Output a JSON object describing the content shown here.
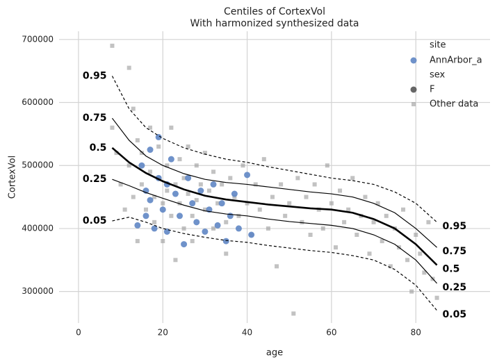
{
  "chart_data": {
    "type": "scatter",
    "title": "Centiles of CortexVol",
    "subtitle": "With harmonized synthesized data",
    "x_label": "age",
    "y_label": "CortexVol",
    "xlim": [
      -4.6,
      97.6
    ],
    "ylim": [
      250000,
      713000
    ],
    "xticks": [
      0,
      20,
      40,
      60,
      80
    ],
    "yticks": [
      300000,
      400000,
      500000,
      600000,
      700000
    ],
    "grid": true,
    "series": [
      {
        "name": "Other data",
        "marker": "square",
        "color": "#9a9a9a",
        "x": [
          8,
          8,
          9,
          10,
          11,
          12,
          12,
          13,
          13,
          14,
          14,
          15,
          15,
          16,
          17,
          17,
          18,
          18,
          19,
          19,
          20,
          20,
          21,
          21,
          22,
          22,
          23,
          23,
          24,
          24,
          25,
          25,
          26,
          26,
          27,
          27,
          28,
          28,
          29,
          30,
          30,
          31,
          32,
          32,
          33,
          34,
          35,
          35,
          36,
          37,
          38,
          39,
          40,
          41,
          42,
          43,
          44,
          45,
          46,
          47,
          48,
          49,
          50,
          51,
          52,
          53,
          54,
          55,
          56,
          57,
          58,
          59,
          60,
          61,
          62,
          63,
          64,
          65,
          66,
          67,
          68,
          69,
          70,
          71,
          72,
          73,
          74,
          75,
          76,
          77,
          78,
          79,
          80,
          81,
          82,
          83,
          84,
          85
        ],
        "values": [
          690000,
          560000,
          520000,
          470000,
          430000,
          655000,
          500000,
          590000,
          450000,
          540000,
          380000,
          470000,
          520000,
          430000,
          560000,
          490000,
          450000,
          410000,
          530000,
          480000,
          440000,
          380000,
          500000,
          460000,
          560000,
          420000,
          470000,
          350000,
          510000,
          440000,
          480000,
          400000,
          530000,
          455000,
          420000,
          380000,
          500000,
          445000,
          470000,
          430000,
          520000,
          460000,
          400000,
          490000,
          440000,
          470000,
          410000,
          360000,
          480000,
          450000,
          420000,
          500000,
          440000,
          390000,
          470000,
          430000,
          510000,
          400000,
          450000,
          340000,
          470000,
          420000,
          440000,
          265000,
          480000,
          410000,
          450000,
          390000,
          470000,
          430000,
          400000,
          500000,
          440000,
          370000,
          460000,
          410000,
          430000,
          480000,
          390000,
          420000,
          450000,
          360000,
          410000,
          440000,
          380000,
          420000,
          340000,
          400000,
          370000,
          430000,
          350000,
          300000,
          390000,
          360000,
          330000,
          410000,
          320000,
          290000
        ]
      },
      {
        "name": "AnnArbor_a",
        "marker": "circle",
        "color": "#5f86c4",
        "x": [
          14,
          15,
          16,
          16,
          17,
          17,
          18,
          19,
          19,
          20,
          21,
          21,
          22,
          23,
          24,
          25,
          26,
          27,
          28,
          29,
          30,
          31,
          32,
          33,
          34,
          35,
          36,
          37,
          38,
          40,
          41
        ],
        "values": [
          405000,
          500000,
          460000,
          420000,
          525000,
          445000,
          400000,
          545000,
          480000,
          430000,
          470000,
          395000,
          510000,
          455000,
          420000,
          375000,
          480000,
          440000,
          410000,
          460000,
          395000,
          430000,
          470000,
          405000,
          440000,
          380000,
          420000,
          455000,
          400000,
          485000,
          390000
        ]
      }
    ],
    "centiles": {
      "x": [
        8,
        12,
        16,
        20,
        25,
        30,
        35,
        40,
        45,
        50,
        55,
        60,
        65,
        70,
        75,
        80,
        85
      ],
      "series": [
        {
          "name": "0.95",
          "dash": true,
          "width": 1.2,
          "color": "#000000",
          "values": [
            642000,
            590000,
            560000,
            543000,
            528000,
            518000,
            510000,
            505000,
            498000,
            492000,
            486000,
            480000,
            476000,
            470000,
            458000,
            440000,
            410000
          ]
        },
        {
          "name": "0.75",
          "dash": false,
          "width": 1.2,
          "color": "#000000",
          "values": [
            575000,
            540000,
            515000,
            500000,
            487000,
            478000,
            473000,
            470000,
            466000,
            462000,
            458000,
            455000,
            450000,
            440000,
            425000,
            400000,
            370000
          ]
        },
        {
          "name": "0.5",
          "dash": false,
          "width": 2.6,
          "color": "#000000",
          "values": [
            528000,
            505000,
            488000,
            475000,
            462000,
            452000,
            446000,
            442000,
            438000,
            435000,
            432000,
            430000,
            425000,
            415000,
            400000,
            375000,
            342000
          ]
        },
        {
          "name": "0.25",
          "dash": false,
          "width": 1.2,
          "color": "#000000",
          "values": [
            478000,
            468000,
            457000,
            448000,
            437000,
            428000,
            423000,
            420000,
            415000,
            411000,
            408000,
            405000,
            400000,
            390000,
            375000,
            350000,
            313000
          ]
        },
        {
          "name": "0.05",
          "dash": true,
          "width": 1.2,
          "color": "#000000",
          "values": [
            412000,
            418000,
            410000,
            400000,
            392000,
            386000,
            381000,
            378000,
            373000,
            369000,
            365000,
            362000,
            357000,
            350000,
            335000,
            310000,
            270000
          ]
        }
      ]
    },
    "legend": {
      "position": "upper right",
      "site_title": "site",
      "sex_title": "sex",
      "sex_entry": "F",
      "sex_color": "#555555"
    }
  }
}
